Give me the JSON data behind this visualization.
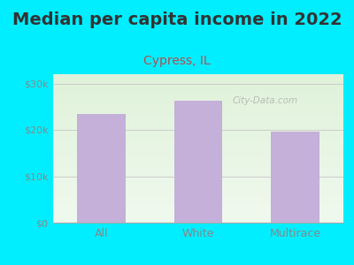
{
  "title": "Median per capita income in 2022",
  "subtitle": "Cypress, IL",
  "categories": [
    "All",
    "White",
    "Multirace"
  ],
  "values": [
    23500,
    26200,
    19700
  ],
  "bar_color": "#c4b0d8",
  "background_outer": "#00eeff",
  "background_plot_top": "#edf5e8",
  "background_plot_bottom": "#f5faf2",
  "title_fontsize": 14,
  "subtitle_fontsize": 10,
  "title_color": "#333333",
  "subtitle_color": "#b05050",
  "tick_color": "#888888",
  "ylim": [
    0,
    32000
  ],
  "yticks": [
    0,
    10000,
    20000,
    30000
  ],
  "ytick_labels": [
    "$0",
    "$10k",
    "$20k",
    "$30k"
  ],
  "watermark": "City-Data.com",
  "grid_color": "#cccccc"
}
